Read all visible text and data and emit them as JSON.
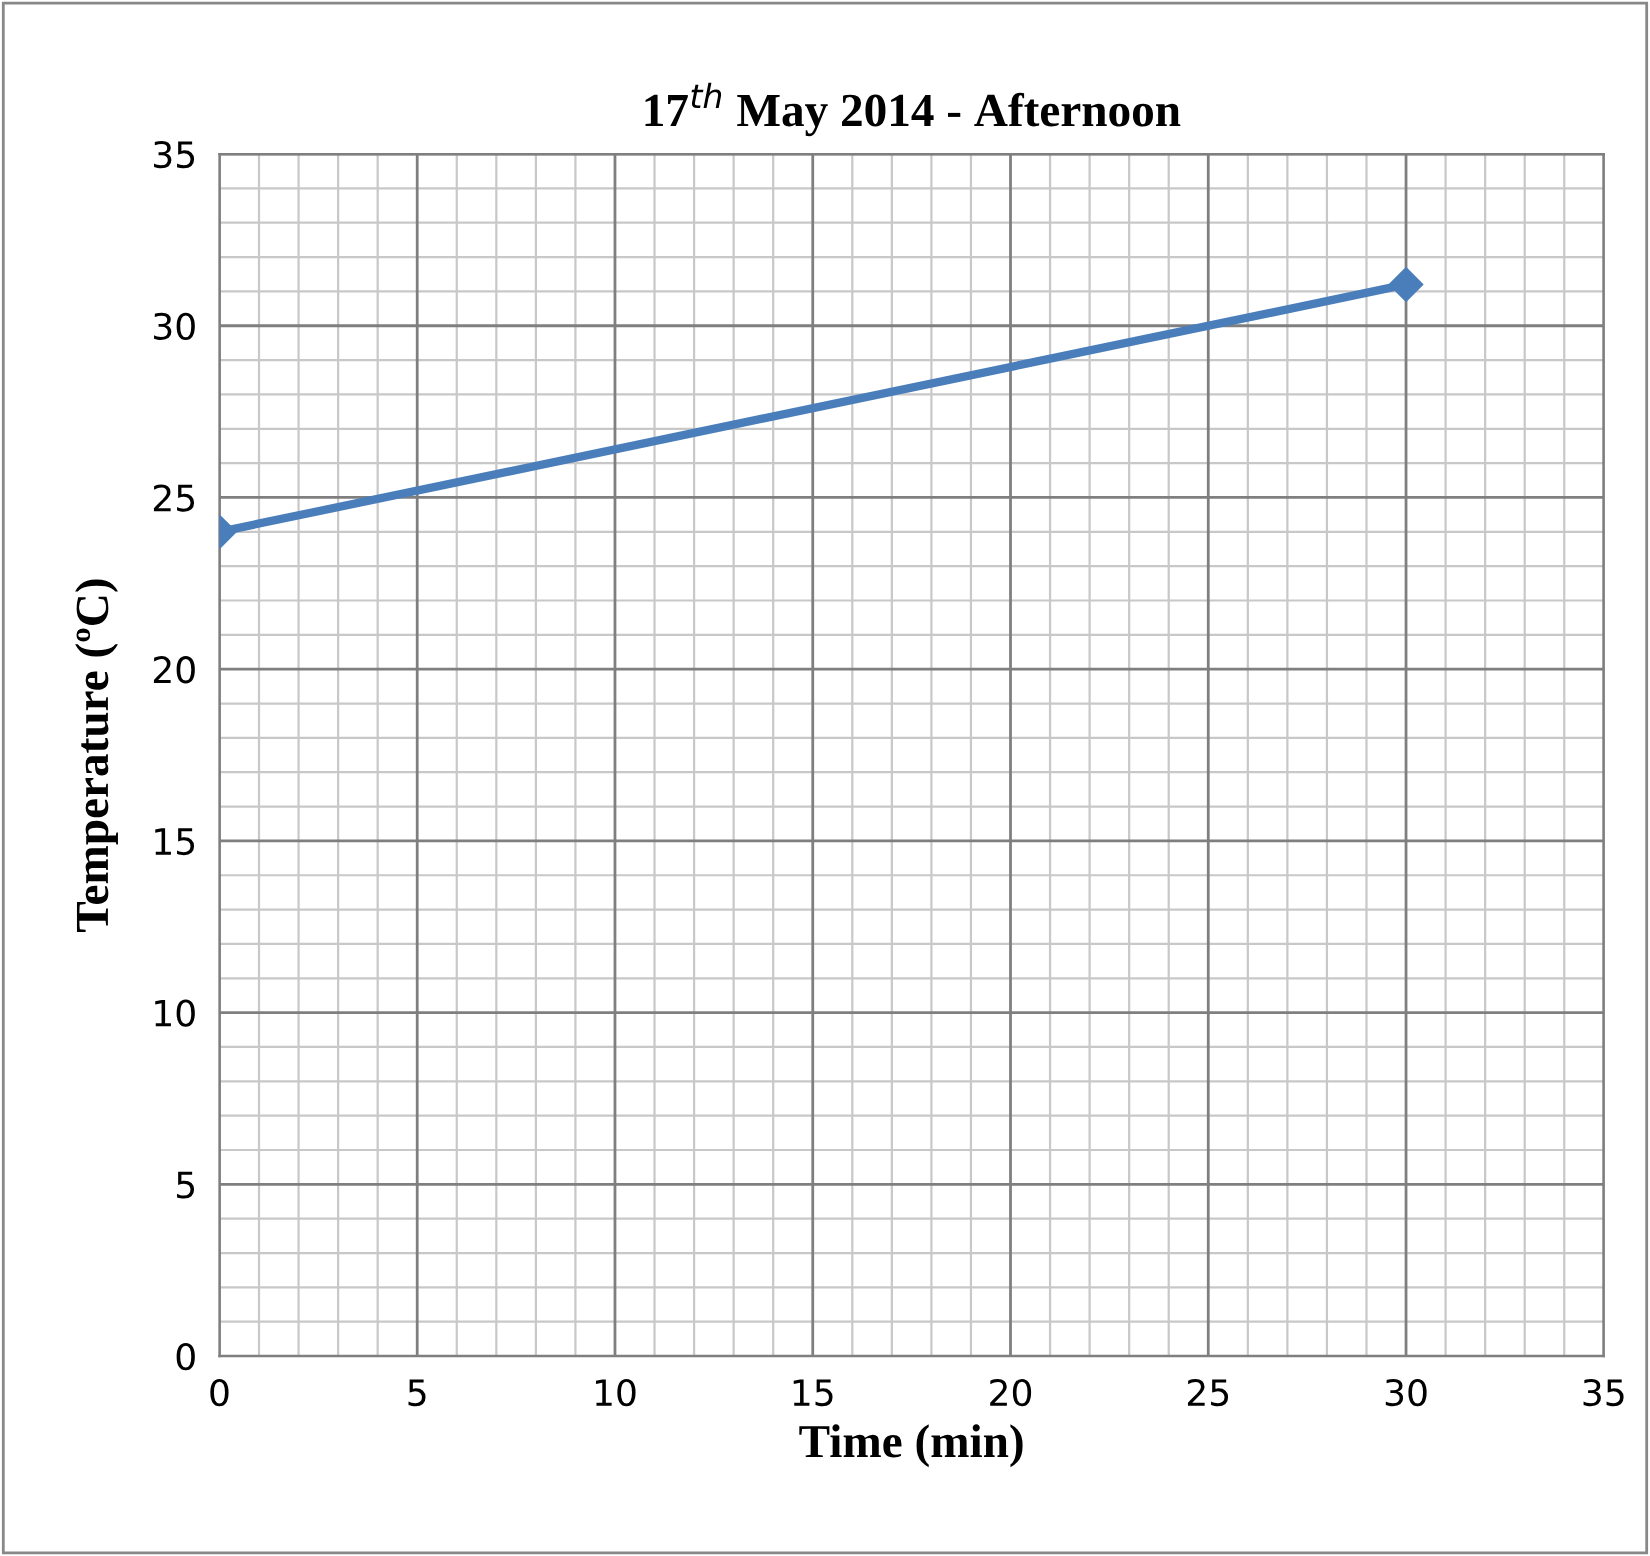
{
  "chart_data": {
    "type": "line",
    "title": "17$^{th}$ May 2014 - Afternoon",
    "xlabel": "Time (min)",
    "ylabel": "Temperature (ºC)",
    "x": [
      0,
      30
    ],
    "series": [
      {
        "color": "#4a7ebb",
        "values": [
          24,
          31.2
        ]
      }
    ],
    "xlim": [
      0,
      35
    ],
    "xticks": [
      0,
      5,
      10,
      15,
      20,
      25,
      30,
      35
    ],
    "ylim": [
      0,
      35
    ],
    "yticks": [
      0,
      5,
      10,
      15,
      20,
      25,
      30,
      35
    ],
    "grid": true,
    "legend": false,
    "marker": "diamond",
    "line_style": "solid"
  }
}
